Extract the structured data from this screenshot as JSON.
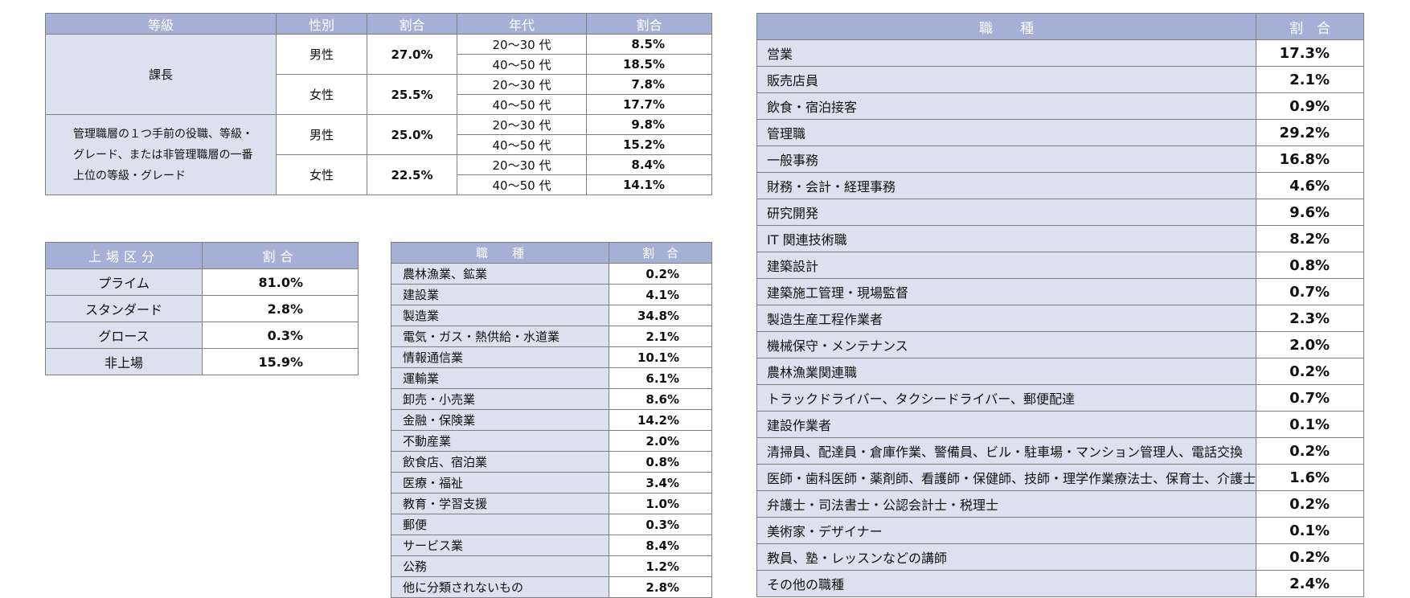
{
  "grade_table": {
    "headers": [
      "等級",
      "性別",
      "割合",
      "年代",
      "割合"
    ],
    "groups": [
      {
        "grade": "課長",
        "genders": [
          {
            "gender": "男性",
            "share": "27.0%",
            "ages": [
              {
                "age": "20〜30 代",
                "share": "8.5%"
              },
              {
                "age": "40〜50 代",
                "share": "18.5%"
              }
            ]
          },
          {
            "gender": "女性",
            "share": "25.5%",
            "ages": [
              {
                "age": "20〜30 代",
                "share": "7.8%"
              },
              {
                "age": "40〜50 代",
                "share": "17.7%"
              }
            ]
          }
        ]
      },
      {
        "grade": "管理職層の１つ手前の役職、等級・グレード、または非管理職層の一番上位の等級・グレード",
        "genders": [
          {
            "gender": "男性",
            "share": "25.0%",
            "ages": [
              {
                "age": "20〜30 代",
                "share": "9.8%"
              },
              {
                "age": "40〜50 代",
                "share": "15.2%"
              }
            ]
          },
          {
            "gender": "女性",
            "share": "22.5%",
            "ages": [
              {
                "age": "20〜30 代",
                "share": "8.4%"
              },
              {
                "age": "40〜50 代",
                "share": "14.1%"
              }
            ]
          }
        ]
      }
    ]
  },
  "listing_table": {
    "headers": [
      "上場区分",
      "割合"
    ],
    "rows": [
      {
        "label": "プライム",
        "value": "81.0%"
      },
      {
        "label": "スタンダード",
        "value": "2.8%"
      },
      {
        "label": "グロース",
        "value": "0.3%"
      },
      {
        "label": "非上場",
        "value": "15.9%"
      }
    ]
  },
  "industry_table": {
    "headers": [
      "職　　種",
      "割　合"
    ],
    "rows": [
      {
        "label": "農林漁業、鉱業",
        "value": "0.2%"
      },
      {
        "label": "建設業",
        "value": "4.1%"
      },
      {
        "label": "製造業",
        "value": "34.8%"
      },
      {
        "label": "電気・ガス・熱供給・水道業",
        "value": "2.1%"
      },
      {
        "label": "情報通信業",
        "value": "10.1%"
      },
      {
        "label": "運輸業",
        "value": "6.1%"
      },
      {
        "label": "卸売・小売業",
        "value": "8.6%"
      },
      {
        "label": "金融・保険業",
        "value": "14.2%"
      },
      {
        "label": "不動産業",
        "value": "2.0%"
      },
      {
        "label": "飲食店、宿泊業",
        "value": "0.8%"
      },
      {
        "label": "医療・福祉",
        "value": "3.4%"
      },
      {
        "label": "教育・学習支援",
        "value": "1.0%"
      },
      {
        "label": "郵便",
        "value": "0.3%"
      },
      {
        "label": "サービス業",
        "value": "8.4%"
      },
      {
        "label": "公務",
        "value": "1.2%"
      },
      {
        "label": "他に分類されないもの",
        "value": "2.8%"
      }
    ]
  },
  "occupation_table": {
    "headers": [
      "職　　種",
      "割　合"
    ],
    "rows": [
      {
        "label": "営業",
        "value": "17.3%"
      },
      {
        "label": "販売店員",
        "value": "2.1%"
      },
      {
        "label": "飲食・宿泊接客",
        "value": "0.9%"
      },
      {
        "label": "管理職",
        "value": "29.2%"
      },
      {
        "label": "一般事務",
        "value": "16.8%"
      },
      {
        "label": "財務・会計・経理事務",
        "value": "4.6%"
      },
      {
        "label": "研究開発",
        "value": "9.6%"
      },
      {
        "label": "IT 関連技術職",
        "value": "8.2%"
      },
      {
        "label": "建築設計",
        "value": "0.8%"
      },
      {
        "label": "建築施工管理・現場監督",
        "value": "0.7%"
      },
      {
        "label": "製造生産工程作業者",
        "value": "2.3%"
      },
      {
        "label": "機械保守・メンテナンス",
        "value": "2.0%"
      },
      {
        "label": "農林漁業関連職",
        "value": "0.2%"
      },
      {
        "label": "トラックドライバー、タクシードライバー、郵便配達",
        "value": "0.7%"
      },
      {
        "label": "建設作業者",
        "value": "0.1%"
      },
      {
        "label": "清掃員、配達員・倉庫作業、警備員、ビル・駐車場・マンション管理人、電話交換",
        "value": "0.2%"
      },
      {
        "label": "医師・歯科医師・薬剤師、看護師・保健師、技師・理学作業療法士、保育士、介護士",
        "value": "1.6%"
      },
      {
        "label": "弁護士・司法書士・公認会計士・税理士",
        "value": "0.2%"
      },
      {
        "label": "美術家・デザイナー",
        "value": "0.1%"
      },
      {
        "label": "教員、塾・レッスンなどの講師",
        "value": "0.2%"
      },
      {
        "label": "その他の職種",
        "value": "2.4%"
      }
    ]
  }
}
